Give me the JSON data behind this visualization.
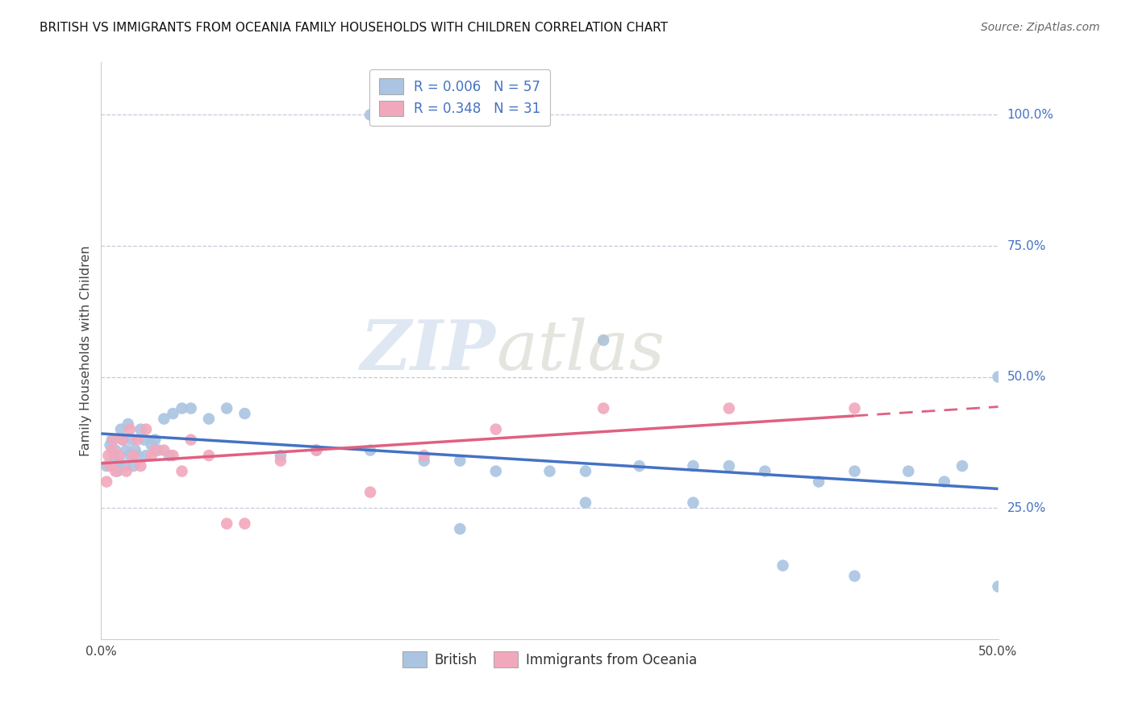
{
  "title": "BRITISH VS IMMIGRANTS FROM OCEANIA FAMILY HOUSEHOLDS WITH CHILDREN CORRELATION CHART",
  "source": "Source: ZipAtlas.com",
  "ylabel": "Family Households with Children",
  "legend_bottom": [
    "British",
    "Immigrants from Oceania"
  ],
  "xlim": [
    0.0,
    0.5
  ],
  "ylim": [
    0.0,
    1.1
  ],
  "british_R": 0.006,
  "british_N": 57,
  "oceania_R": 0.348,
  "oceania_N": 31,
  "british_color": "#aac4e2",
  "oceania_color": "#f2a8bc",
  "british_line_color": "#4472c4",
  "oceania_line_color": "#e06080",
  "background_color": "#ffffff",
  "grid_color": "#c8c8d8",
  "brit_x": [
    0.003,
    0.005,
    0.006,
    0.007,
    0.008,
    0.009,
    0.01,
    0.011,
    0.012,
    0.013,
    0.014,
    0.015,
    0.016,
    0.017,
    0.018,
    0.019,
    0.02,
    0.022,
    0.024,
    0.025,
    0.028,
    0.03,
    0.032,
    0.035,
    0.038,
    0.04,
    0.045,
    0.05,
    0.06,
    0.07,
    0.08,
    0.1,
    0.12,
    0.15,
    0.18,
    0.2,
    0.22,
    0.25,
    0.27,
    0.3,
    0.33,
    0.35,
    0.37,
    0.4,
    0.42,
    0.45,
    0.47,
    0.48,
    0.5,
    0.33,
    0.27,
    0.2,
    0.5,
    0.42,
    0.38,
    0.28,
    0.15
  ],
  "brit_y": [
    0.33,
    0.37,
    0.38,
    0.35,
    0.36,
    0.32,
    0.34,
    0.4,
    0.38,
    0.33,
    0.36,
    0.41,
    0.35,
    0.38,
    0.33,
    0.36,
    0.35,
    0.4,
    0.38,
    0.35,
    0.37,
    0.38,
    0.36,
    0.42,
    0.35,
    0.43,
    0.44,
    0.44,
    0.42,
    0.44,
    0.43,
    0.35,
    0.36,
    0.36,
    0.34,
    0.34,
    0.32,
    0.32,
    0.32,
    0.33,
    0.33,
    0.33,
    0.32,
    0.3,
    0.32,
    0.32,
    0.3,
    0.33,
    0.5,
    0.26,
    0.26,
    0.21,
    0.1,
    0.12,
    0.14,
    0.57,
    1.0
  ],
  "oce_x": [
    0.003,
    0.004,
    0.005,
    0.006,
    0.007,
    0.008,
    0.01,
    0.012,
    0.014,
    0.016,
    0.018,
    0.02,
    0.022,
    0.025,
    0.028,
    0.03,
    0.035,
    0.04,
    0.045,
    0.05,
    0.06,
    0.07,
    0.08,
    0.1,
    0.12,
    0.15,
    0.18,
    0.22,
    0.28,
    0.35,
    0.42
  ],
  "oce_y": [
    0.3,
    0.35,
    0.33,
    0.36,
    0.38,
    0.32,
    0.35,
    0.38,
    0.32,
    0.4,
    0.35,
    0.38,
    0.33,
    0.4,
    0.35,
    0.36,
    0.36,
    0.35,
    0.32,
    0.38,
    0.35,
    0.22,
    0.22,
    0.34,
    0.36,
    0.28,
    0.35,
    0.4,
    0.44,
    0.44,
    0.44
  ]
}
